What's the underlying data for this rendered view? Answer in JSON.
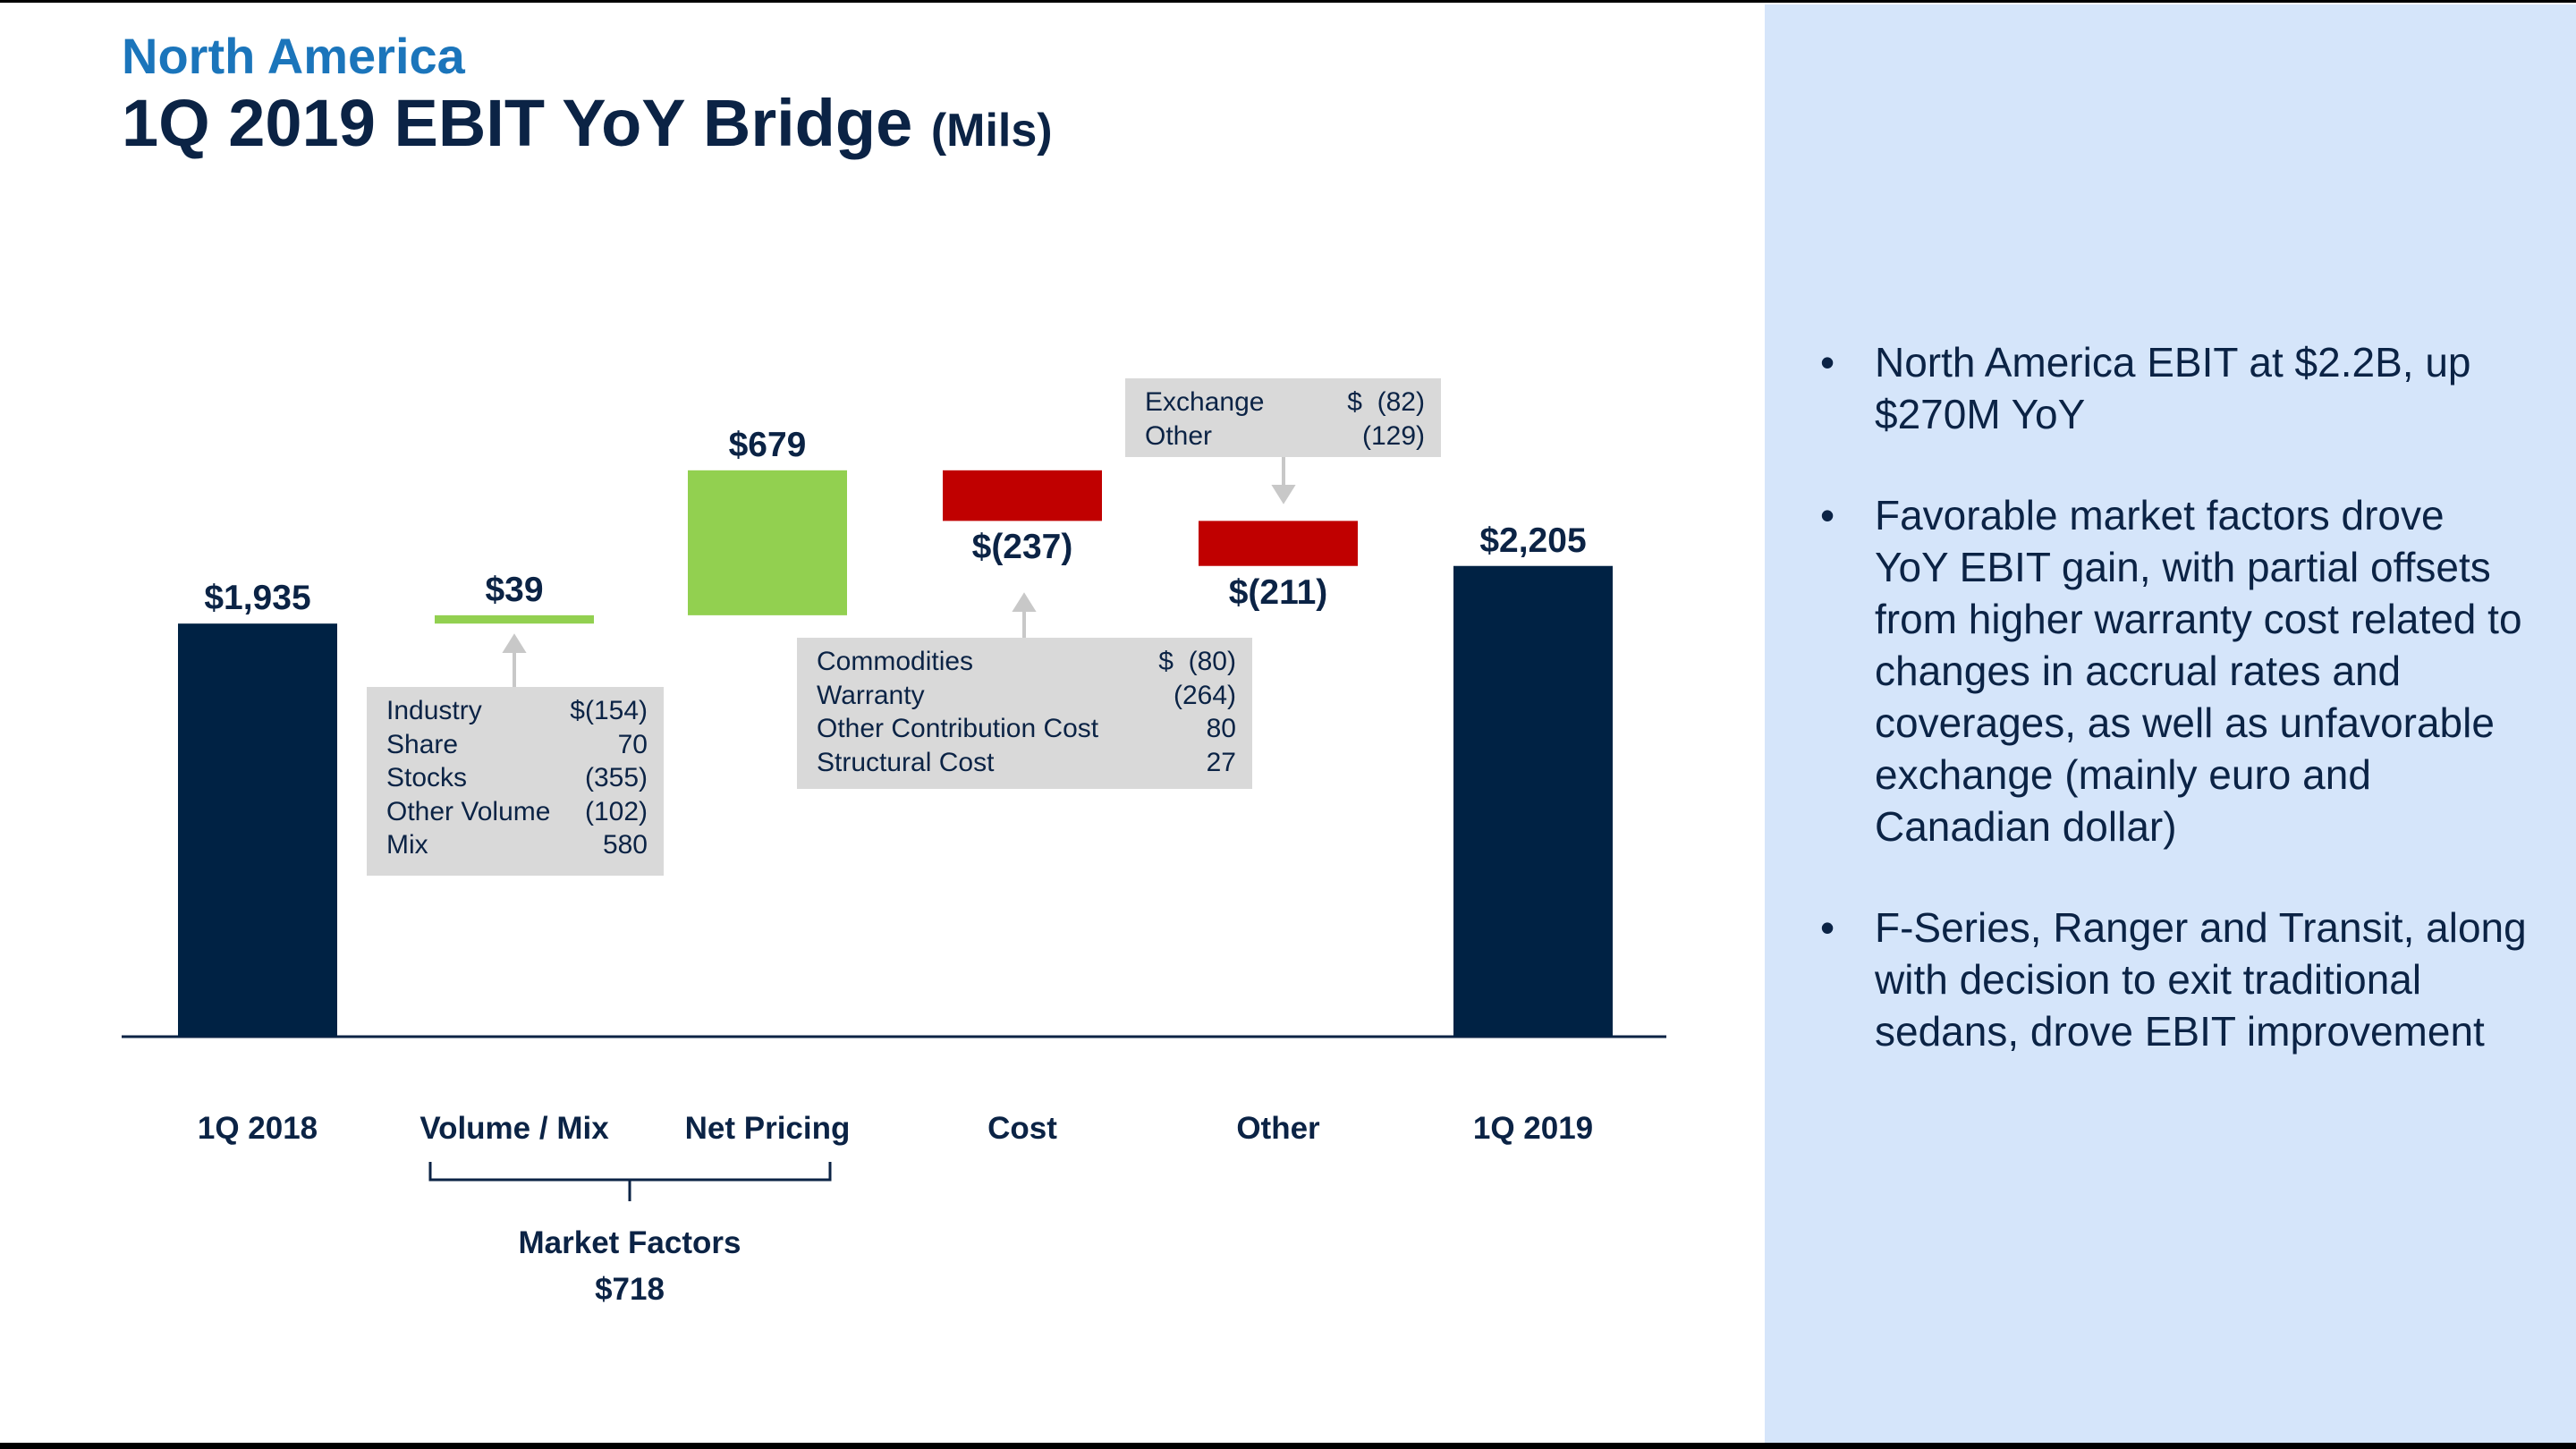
{
  "header": {
    "supertitle": "North America"
  },
  "chart_data": {
    "type": "waterfall",
    "title": "1Q 2019 EBIT YoY Bridge",
    "title_unit": "(Mils)",
    "categories": [
      "1Q 2018",
      "Volume / Mix",
      "Net Pricing",
      "Cost",
      "Other",
      "1Q 2019"
    ],
    "measures": [
      "total",
      "relative",
      "relative",
      "relative",
      "relative",
      "total"
    ],
    "values": [
      1935,
      39,
      679,
      -237,
      -211,
      2205
    ],
    "value_labels": [
      "$1,935",
      "$39",
      "$679",
      "$(237)",
      "$(211)",
      "$2,205"
    ],
    "colors": [
      "#002244",
      "#92d050",
      "#92d050",
      "#c00000",
      "#c00000",
      "#002244"
    ],
    "ylim": [
      0,
      3000
    ],
    "callouts": [
      {
        "rows": [
          [
            "Industry",
            "$(154)"
          ],
          [
            "Share",
            "70"
          ],
          [
            "Stocks",
            "(355)"
          ],
          [
            "Other Volume",
            "(102)"
          ],
          [
            "Mix",
            "580"
          ]
        ]
      },
      {
        "rows": [
          [
            "Commodities",
            "$  (80)"
          ],
          [
            "Warranty",
            "(264)"
          ],
          [
            "Other Contribution Cost",
            "80"
          ],
          [
            "Structural Cost",
            "27"
          ]
        ]
      },
      {
        "rows": [
          [
            "Exchange",
            "$  (82)"
          ],
          [
            "Other",
            "(129)"
          ]
        ]
      }
    ],
    "group": {
      "label": "Market Factors",
      "value_label": "$718"
    }
  },
  "panel": {
    "bullets": [
      "North America EBIT at $2.2B, up $270M YoY",
      "Favorable market factors drove YoY EBIT gain, with partial offsets from higher warranty cost related to changes in accrual rates and coverages, as well as unfavorable exchange (mainly euro and Canadian dollar)",
      "F-Series, Ranger and Transit, along with decision to exit traditional sedans, drove EBIT improvement"
    ]
  }
}
